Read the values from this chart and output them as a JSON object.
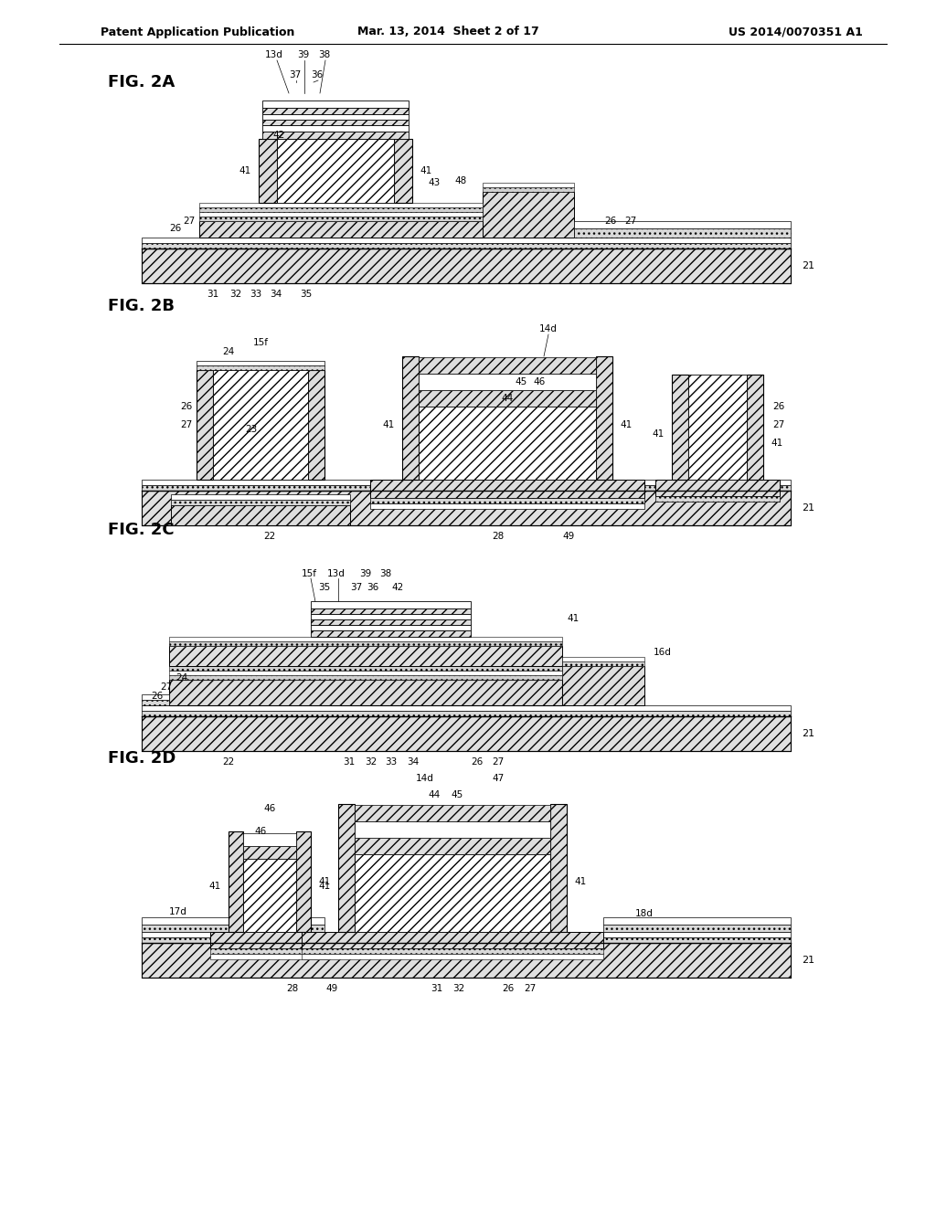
{
  "bg_color": "#ffffff",
  "header_left": "Patent Application Publication",
  "header_center": "Mar. 13, 2014  Sheet 2 of 17",
  "header_right": "US 2014/0070351 A1",
  "fig_titles": [
    "FIG. 2A",
    "FIG. 2B",
    "FIG. 2C",
    "FIG. 2D"
  ],
  "lw_thin": 0.7,
  "lw_med": 1.0,
  "hatch_diag": "///",
  "hatch_cross": "xxx",
  "hatch_dot": "...",
  "fc_hatch": "#e8e8e8",
  "fc_white": "#ffffff",
  "ec": "#000000"
}
